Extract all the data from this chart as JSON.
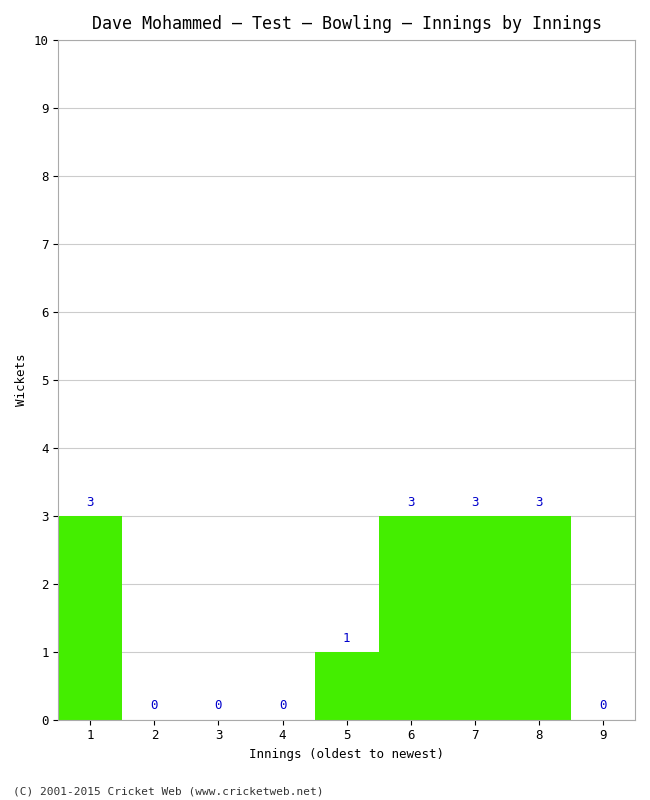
{
  "title": "Dave Mohammed – Test – Bowling – Innings by Innings",
  "xlabel": "Innings (oldest to newest)",
  "ylabel": "Wickets",
  "categories": [
    1,
    2,
    3,
    4,
    5,
    6,
    7,
    8,
    9
  ],
  "values": [
    3,
    0,
    0,
    0,
    1,
    3,
    3,
    3,
    0
  ],
  "bar_color": "#44ee00",
  "bar_edge_color": "#44ee00",
  "label_color": "#0000cc",
  "ylim": [
    0,
    10
  ],
  "yticks": [
    0,
    1,
    2,
    3,
    4,
    5,
    6,
    7,
    8,
    9,
    10
  ],
  "xticks": [
    1,
    2,
    3,
    4,
    5,
    6,
    7,
    8,
    9
  ],
  "title_fontsize": 12,
  "axis_label_fontsize": 9,
  "tick_fontsize": 9,
  "value_label_fontsize": 9,
  "footer": "(C) 2001-2015 Cricket Web (www.cricketweb.net)",
  "footer_fontsize": 8,
  "background_color": "#ffffff",
  "grid_color": "#cccccc",
  "bar_width": 1.0,
  "xlim": [
    0.5,
    9.5
  ]
}
